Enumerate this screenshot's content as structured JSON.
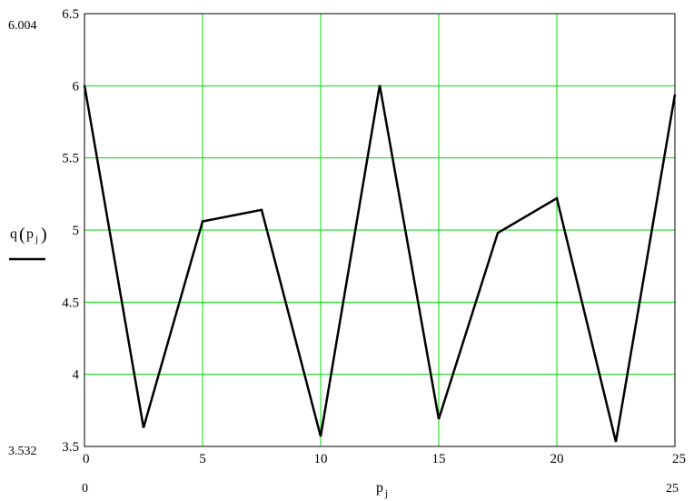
{
  "chart_data": {
    "type": "line",
    "xlabel": "p",
    "xlabel_sub": "j",
    "ylabel_func": "q",
    "ylabel_arg": "p",
    "ylabel_sub": "j",
    "xlim": [
      0,
      25
    ],
    "ylim": [
      3.5,
      6.5
    ],
    "xticks": [
      0,
      5,
      10,
      15,
      20,
      25
    ],
    "yticks": [
      3.5,
      4,
      4.5,
      5,
      5.5,
      6,
      6.5
    ],
    "xtick_labels": [
      "0",
      "5",
      "10",
      "15",
      "20",
      "25"
    ],
    "ytick_labels": [
      "3.5",
      "4",
      "4.5",
      "5",
      "5.5",
      "6",
      "6.5"
    ],
    "range_labels": {
      "y_max": "6.004",
      "y_min": "3.532",
      "x_min": "0",
      "x_max": "25"
    },
    "grid": true,
    "grid_color": "#00dd00",
    "line_color": "#000000",
    "series": [
      {
        "x": [
          0,
          2.5,
          5,
          7.5,
          10,
          12.5,
          15,
          17.5,
          20,
          22.5,
          25
        ],
        "y": [
          6.004,
          3.63,
          5.06,
          5.14,
          3.57,
          6.004,
          3.69,
          4.98,
          5.22,
          3.532,
          5.94
        ]
      }
    ]
  }
}
